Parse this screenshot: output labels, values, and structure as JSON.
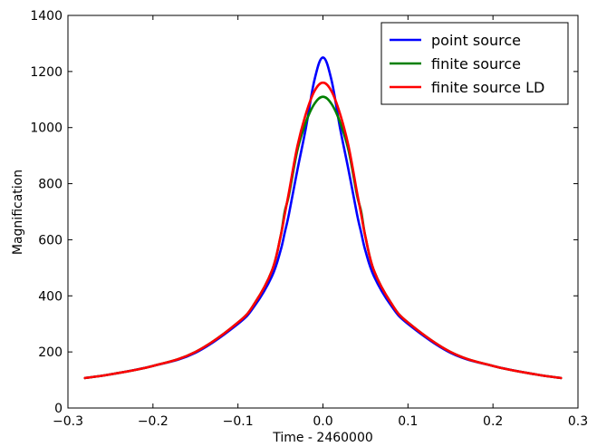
{
  "chart_data": {
    "type": "line",
    "title": "",
    "xlabel": "Time - 2460000",
    "ylabel": "Magnification",
    "xlim": [
      -0.3,
      0.3
    ],
    "ylim": [
      0,
      1400
    ],
    "xticks": [
      -0.3,
      -0.2,
      -0.1,
      0.0,
      0.1,
      0.2,
      0.3
    ],
    "xtick_labels": [
      "−0.3",
      "−0.2",
      "−0.1",
      "0.0",
      "0.1",
      "0.2",
      "0.3"
    ],
    "yticks": [
      0,
      200,
      400,
      600,
      800,
      1000,
      1200,
      1400
    ],
    "ytick_labels": [
      "0",
      "200",
      "400",
      "600",
      "800",
      "1000",
      "1200",
      "1400"
    ],
    "grid": false,
    "legend_position": "top-right",
    "x": [
      -0.28,
      -0.25,
      -0.2,
      -0.15,
      -0.1,
      -0.08,
      -0.06,
      -0.05,
      -0.045,
      -0.04,
      -0.03,
      -0.02,
      -0.01,
      0.0,
      0.01,
      0.02,
      0.03,
      0.04,
      0.045,
      0.05,
      0.06,
      0.08,
      0.1,
      0.15,
      0.2,
      0.25,
      0.28
    ],
    "series": [
      {
        "name": "point source",
        "color": "#0000ff",
        "values": [
          107,
          120,
          150,
          197,
          300,
          366,
          470,
          560,
          625,
          692,
          850,
          1000,
          1170,
          1250,
          1170,
          1000,
          850,
          692,
          625,
          560,
          470,
          366,
          300,
          197,
          150,
          120,
          107
        ]
      },
      {
        "name": "finite source",
        "color": "#008000",
        "values": [
          107,
          120,
          150,
          200,
          305,
          375,
          490,
          610,
          700,
          760,
          920,
          1020,
          1085,
          1110,
          1085,
          1020,
          920,
          760,
          700,
          610,
          490,
          375,
          305,
          200,
          150,
          120,
          107
        ]
      },
      {
        "name": "finite source LD",
        "color": "#ff0000",
        "values": [
          107,
          120,
          150,
          200,
          305,
          375,
          490,
          610,
          690,
          770,
          935,
          1050,
          1130,
          1160,
          1130,
          1050,
          935,
          770,
          690,
          610,
          490,
          375,
          305,
          200,
          150,
          120,
          107
        ]
      }
    ]
  }
}
